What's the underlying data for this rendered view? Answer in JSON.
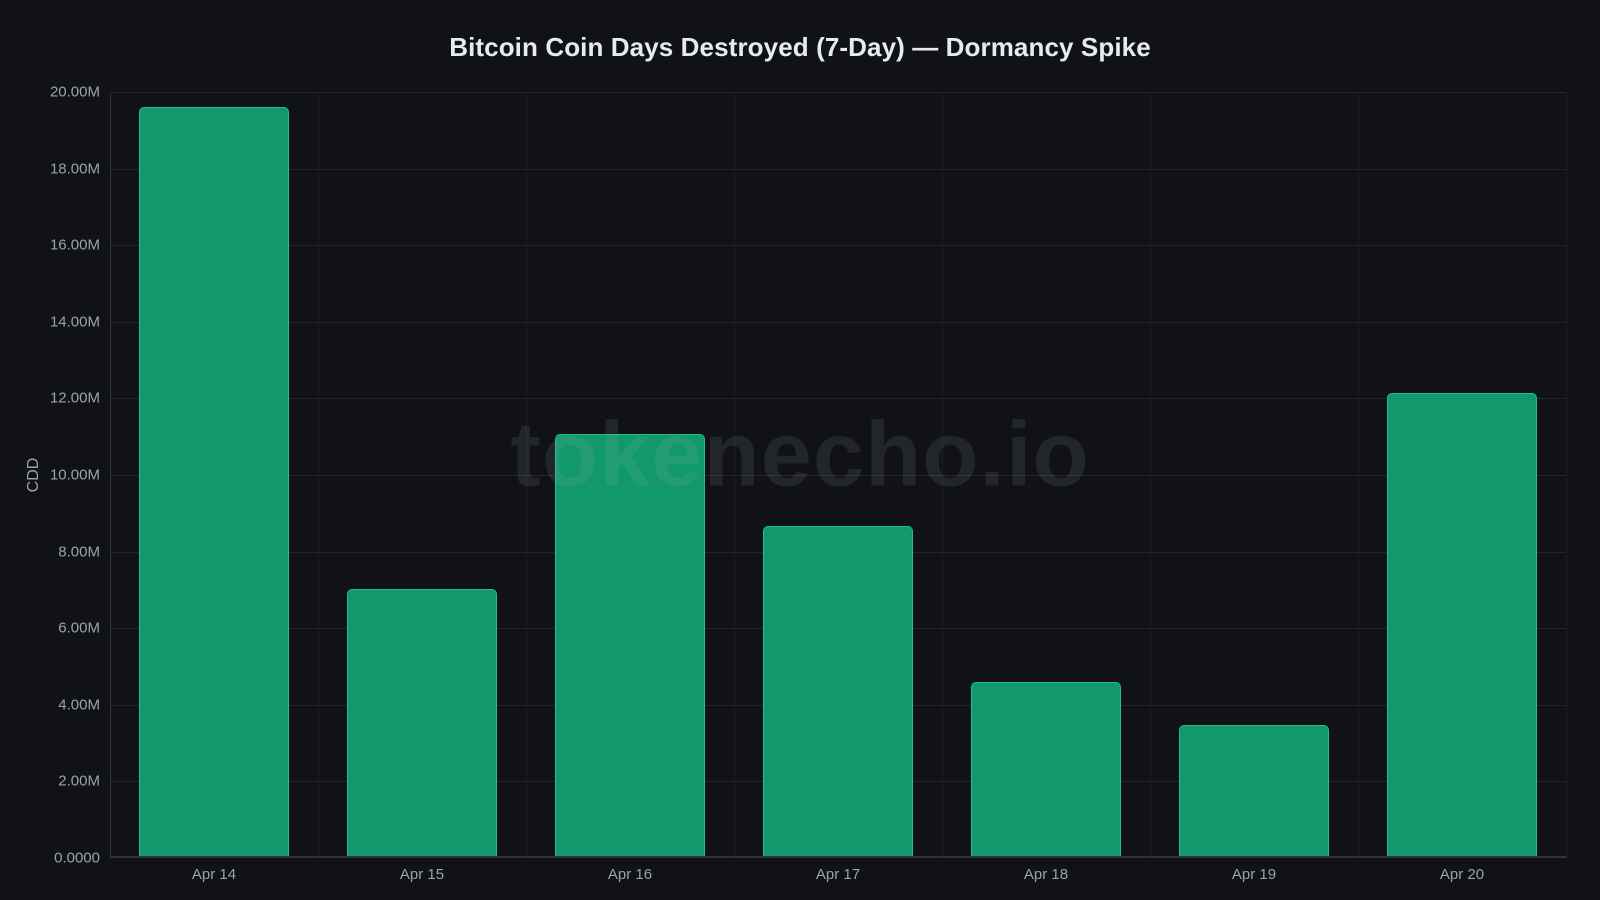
{
  "chart_data": {
    "type": "bar",
    "title": "Bitcoin Coin Days Destroyed (7-Day) — Dormancy Spike",
    "xlabel": "",
    "ylabel": "CDD",
    "categories": [
      "Apr 14",
      "Apr 15",
      "Apr 16",
      "Apr 17",
      "Apr 18",
      "Apr 19",
      "Apr 20"
    ],
    "values": [
      19600000,
      7000000,
      11050000,
      8650000,
      4550000,
      3420000,
      12120000
    ],
    "ylim": [
      0,
      20000000
    ],
    "yticks": [
      "0.0000",
      "2.00M",
      "4.00M",
      "6.00M",
      "8.00M",
      "10.00M",
      "12.00M",
      "14.00M",
      "16.00M",
      "18.00M",
      "20.00M"
    ],
    "grid": true,
    "legend": null,
    "bar_color": "#11996b",
    "bar_edge_color": "#1fbf85"
  },
  "watermark": "tokenecho.io",
  "colors": {
    "background": "#111217",
    "title": "#e6ebf2",
    "tick_text": "#9aa3ad",
    "grid": "#23252c"
  }
}
